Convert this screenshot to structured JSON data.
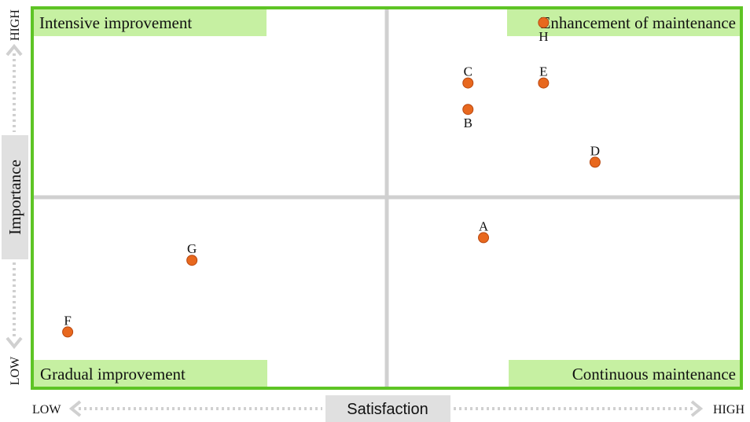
{
  "colors": {
    "border": "#5ec425",
    "label_bg": "#c6f0a2",
    "divider": "#d0d0d0",
    "point_fill": "#e8681e",
    "point_stroke": "#b84810",
    "axis_box": "#e0e0e0",
    "arrow": "#d0d0d0",
    "text": "#111111"
  },
  "quadrants": {
    "top_left": "Intensive improvement",
    "top_right": "Enhancement of maintenance",
    "bottom_left": "Gradual improvement",
    "bottom_right": "Continuous maintenance"
  },
  "axes": {
    "x_title": "Satisfaction",
    "x_low": "LOW",
    "x_high": "HIGH",
    "y_title": "Importance",
    "y_low": "LOW",
    "y_high": "HIGH"
  },
  "chart_data": {
    "type": "scatter",
    "title": "",
    "xlabel": "Satisfaction",
    "ylabel": "Importance",
    "xlim": [
      0,
      1
    ],
    "ylim": [
      0,
      1
    ],
    "grid": false,
    "points": [
      {
        "label": "A",
        "x": 0.637,
        "y": 0.395,
        "label_pos": "above"
      },
      {
        "label": "B",
        "x": 0.615,
        "y": 0.735,
        "label_pos": "below"
      },
      {
        "label": "C",
        "x": 0.615,
        "y": 0.805,
        "label_pos": "above"
      },
      {
        "label": "D",
        "x": 0.795,
        "y": 0.595,
        "label_pos": "above"
      },
      {
        "label": "E",
        "x": 0.722,
        "y": 0.805,
        "label_pos": "above"
      },
      {
        "label": "F",
        "x": 0.048,
        "y": 0.145,
        "label_pos": "above"
      },
      {
        "label": "G",
        "x": 0.224,
        "y": 0.335,
        "label_pos": "above"
      },
      {
        "label": "H",
        "x": 0.722,
        "y": 0.965,
        "label_pos": "below"
      }
    ]
  }
}
